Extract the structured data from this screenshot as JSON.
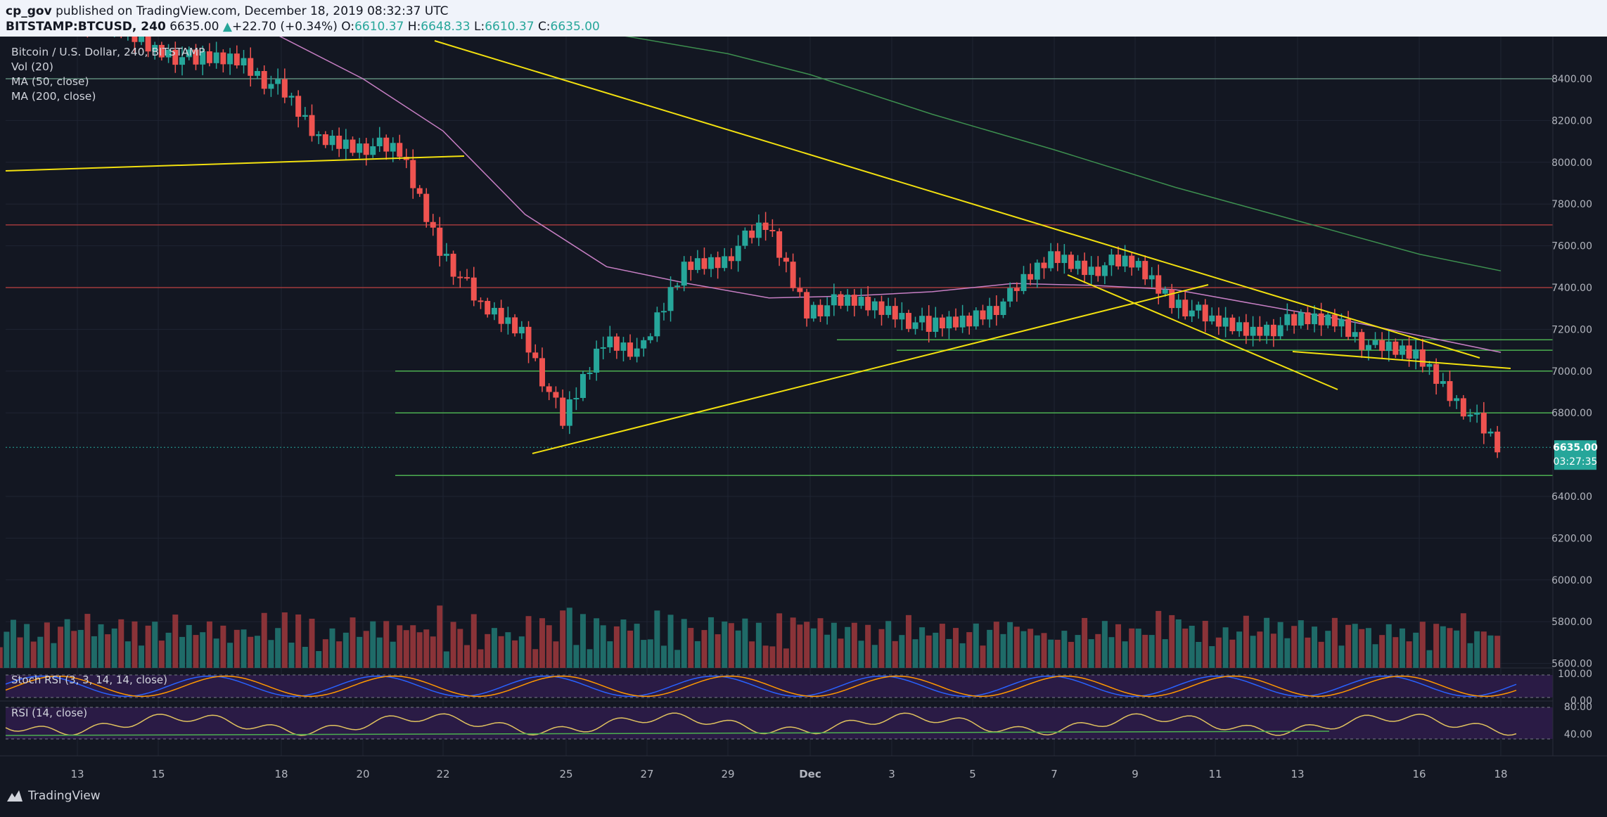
{
  "header": {
    "author": "cp_gov",
    "published_text": "published on TradingView.com, December 18, 2019 08:32:37 UTC",
    "symbol": "BITSTAMP:BTCUSD, 240",
    "last": "6635.00",
    "change": "+22.70 (+0.34%)",
    "o_label": "O:",
    "o_value": "6610.37",
    "h_label": "H:",
    "h_value": "6648.33",
    "l_label": "L:",
    "l_value": "6610.37",
    "c_label": "C:",
    "c_value": "6635.00"
  },
  "legend": {
    "title": "Bitcoin / U.S. Dollar, 240, BITSTAMP",
    "vol": "Vol (20)",
    "ma50": "MA (50, close)",
    "ma200": "MA (200, close)"
  },
  "stoch_label": "Stoch RSI (3, 3, 14, 14, close)",
  "rsi_label": "RSI (14, close)",
  "footer": {
    "brand": "TradingView",
    "logo_icon": "tradingview-logo-icon"
  },
  "colors": {
    "up": "#26a69a",
    "down": "#ef5350",
    "up_vol": "#1f6b68",
    "down_vol": "#8a3338",
    "trendline": "#f2e00f",
    "support": "#4caf50",
    "resistance": "#a23a3d",
    "ma50": "#c77fc4",
    "ma200": "#3d8f4f",
    "grid": "#1f2433",
    "background": "#131722",
    "price_tag": "#26a69a"
  },
  "price_tag": {
    "price": "6635.00",
    "countdown": "03:27:35"
  },
  "chart_data": {
    "type": "candlestick",
    "title": "Bitcoin / U.S. Dollar, 240, BITSTAMP",
    "xlabel": "",
    "ylabel": "",
    "x_ticks": [
      "13",
      "15",
      "18",
      "20",
      "22",
      "25",
      "27",
      "29",
      "Dec",
      "3",
      "5",
      "7",
      "9",
      "11",
      "13",
      "16",
      "18"
    ],
    "y_ticks": [
      "8400.00",
      "8200.00",
      "8000.00",
      "7800.00",
      "7600.00",
      "7400.00",
      "7200.00",
      "7000.00",
      "6800.00",
      "6400.00",
      "6200.00",
      "6000.00",
      "5800.00",
      "5600.00"
    ],
    "ylim": [
      5560,
      8600
    ],
    "grid": true,
    "close_path": [
      {
        "x": "Nov 11",
        "y": 8700
      },
      {
        "x": "Nov 12",
        "y": 8760
      },
      {
        "x": "Nov 13",
        "y": 8720
      },
      {
        "x": "Nov 14",
        "y": 8650
      },
      {
        "x": "Nov 15",
        "y": 8550
      },
      {
        "x": "Nov 16",
        "y": 8480
      },
      {
        "x": "Nov 17",
        "y": 8500
      },
      {
        "x": "Nov 18",
        "y": 8350
      },
      {
        "x": "Nov 19",
        "y": 8110
      },
      {
        "x": "Nov 20",
        "y": 8090
      },
      {
        "x": "Nov 21",
        "y": 8050
      },
      {
        "x": "Nov 22",
        "y": 7600
      },
      {
        "x": "Nov 23",
        "y": 7300
      },
      {
        "x": "Nov 24",
        "y": 7200
      },
      {
        "x": "Nov 25",
        "y": 6750
      },
      {
        "x": "Nov 26",
        "y": 7150
      },
      {
        "x": "Nov 27",
        "y": 7100
      },
      {
        "x": "Nov 28",
        "y": 7500
      },
      {
        "x": "Nov 29",
        "y": 7550
      },
      {
        "x": "Nov 30",
        "y": 7700
      },
      {
        "x": "Dec 1",
        "y": 7300
      },
      {
        "x": "Dec 2",
        "y": 7330
      },
      {
        "x": "Dec 3",
        "y": 7300
      },
      {
        "x": "Dec 4",
        "y": 7200
      },
      {
        "x": "Dec 5",
        "y": 7250
      },
      {
        "x": "Dec 6",
        "y": 7350
      },
      {
        "x": "Dec 7",
        "y": 7550
      },
      {
        "x": "Dec 8",
        "y": 7500
      },
      {
        "x": "Dec 9",
        "y": 7520
      },
      {
        "x": "Dec 10",
        "y": 7350
      },
      {
        "x": "Dec 11",
        "y": 7230
      },
      {
        "x": "Dec 12",
        "y": 7200
      },
      {
        "x": "Dec 13",
        "y": 7230
      },
      {
        "x": "Dec 14",
        "y": 7250
      },
      {
        "x": "Dec 15",
        "y": 7100
      },
      {
        "x": "Dec 16",
        "y": 7080
      },
      {
        "x": "Dec 17",
        "y": 6870
      },
      {
        "x": "Dec 18",
        "y": 6635
      }
    ],
    "ma50": [
      {
        "x": "Nov 17",
        "y": 8700
      },
      {
        "x": "Nov 20",
        "y": 8400
      },
      {
        "x": "Nov 22",
        "y": 8150
      },
      {
        "x": "Nov 24",
        "y": 7750
      },
      {
        "x": "Nov 26",
        "y": 7500
      },
      {
        "x": "Nov 28",
        "y": 7420
      },
      {
        "x": "Nov 30",
        "y": 7350
      },
      {
        "x": "Dec 2",
        "y": 7360
      },
      {
        "x": "Dec 4",
        "y": 7380
      },
      {
        "x": "Dec 6",
        "y": 7420
      },
      {
        "x": "Dec 8",
        "y": 7410
      },
      {
        "x": "Dec 10",
        "y": 7390
      },
      {
        "x": "Dec 12",
        "y": 7320
      },
      {
        "x": "Dec 14",
        "y": 7250
      },
      {
        "x": "Dec 16",
        "y": 7170
      },
      {
        "x": "Dec 18",
        "y": 7090
      }
    ],
    "ma200": [
      {
        "x": "Nov 26",
        "y": 8620
      },
      {
        "x": "Nov 29",
        "y": 8520
      },
      {
        "x": "Dec 1",
        "y": 8420
      },
      {
        "x": "Dec 4",
        "y": 8230
      },
      {
        "x": "Dec 7",
        "y": 8060
      },
      {
        "x": "Dec 10",
        "y": 7880
      },
      {
        "x": "Dec 13",
        "y": 7720
      },
      {
        "x": "Dec 16",
        "y": 7560
      },
      {
        "x": "Dec 18",
        "y": 7480
      }
    ],
    "support_levels": [
      7150,
      7100,
      7000,
      6800,
      6500
    ],
    "resistance_levels": [
      7700,
      7400,
      8400
    ],
    "current_price": 6635
  },
  "stoch_ticks": [
    "100.00",
    "0.00"
  ],
  "rsi_ticks": [
    "80.00",
    "40.00"
  ]
}
